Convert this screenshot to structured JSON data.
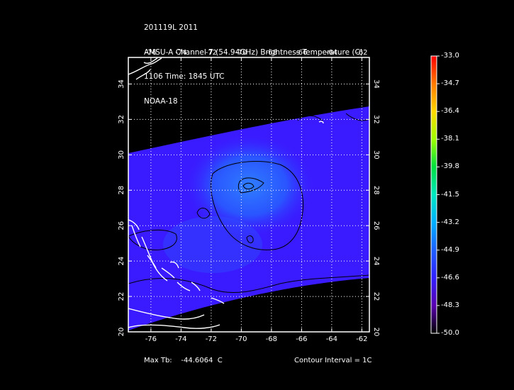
{
  "header": {
    "line1": "201119L 2011",
    "line2": "AMSU-A Channel 7 (54.94GHz) Brightness Temperature (C)",
    "line3": "1106 Time: 1845 UTC",
    "line4": "NOAA-18"
  },
  "map": {
    "lon_labels": [
      "-76",
      "-74",
      "-72",
      "-70",
      "-68",
      "-66",
      "-64",
      "-62"
    ],
    "lat_labels": [
      "20",
      "22",
      "24",
      "26",
      "28",
      "30",
      "32",
      "34"
    ],
    "lon_range": [
      -77.5,
      -61.5
    ],
    "lat_range": [
      20,
      35.5
    ],
    "grid": true,
    "swath_color": "#3a1aff",
    "warm_core_color": "#2f6bff",
    "contour_color": "#000000",
    "coast_color": "#ffffff"
  },
  "colorbar": {
    "ticks": [
      "-33.0",
      "-34.7",
      "-36.4",
      "-38.1",
      "-39.8",
      "-41.5",
      "-43.2",
      "-44.9",
      "-46.6",
      "-48.3",
      "-50.0"
    ],
    "colors": [
      "#ff0000",
      "#ff7a00",
      "#ffd800",
      "#a0ff00",
      "#00e040",
      "#00e8c0",
      "#00b0ff",
      "#1e60ff",
      "#3020ff",
      "#5a00b0",
      "#3a0050",
      "#000000"
    ]
  },
  "footer": {
    "max_label": "Max Tb:",
    "max_value": "-44.6064",
    "max_unit": "C",
    "contour": "Contour Interval = 1C"
  }
}
